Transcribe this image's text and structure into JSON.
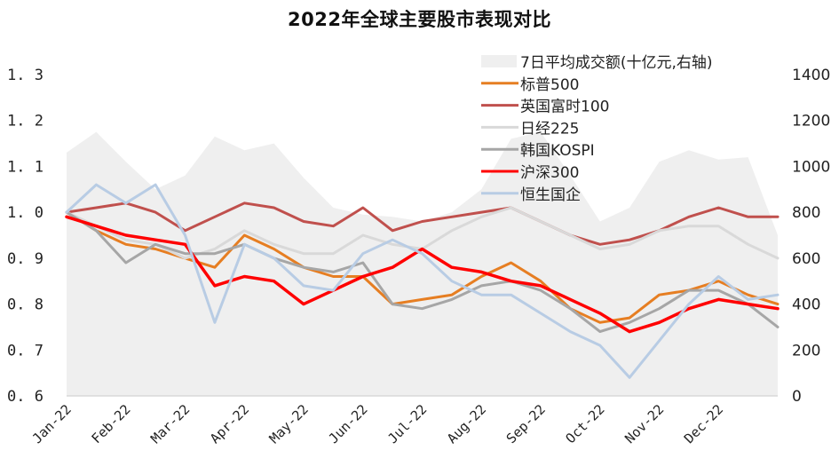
{
  "chart_data": {
    "type": "line",
    "title": "2022年全球主要股市表现对比",
    "xlabel": "",
    "ylabel": "",
    "y2label": "7日平均成交额(十亿元,右轴)",
    "ylim": [
      0.6,
      1.3
    ],
    "y2lim": [
      0,
      1400
    ],
    "grid": false,
    "legend_position": "top-right (inside plot)",
    "x_ticks": [
      "Jan-22",
      "Feb-22",
      "Mar-22",
      "Apr-22",
      "May-22",
      "Jun-22",
      "Jul-22",
      "Aug-22",
      "Sep-22",
      "Oct-22",
      "Nov-22",
      "Dec-22"
    ],
    "y_ticks": [
      "1.3",
      "1.2",
      "1.1",
      "1.0",
      "0.9",
      "0.8",
      "0.7",
      "0.6"
    ],
    "y2_ticks": [
      "1400",
      "1200",
      "1000",
      "800",
      "600",
      "400",
      "200",
      "0"
    ],
    "x": [
      "Jan-01",
      "Jan-15",
      "Feb-01",
      "Feb-15",
      "Mar-01",
      "Mar-15",
      "Apr-01",
      "Apr-15",
      "May-01",
      "May-15",
      "Jun-01",
      "Jun-15",
      "Jul-01",
      "Jul-15",
      "Aug-01",
      "Aug-15",
      "Sep-01",
      "Sep-15",
      "Oct-01",
      "Oct-15",
      "Nov-01",
      "Nov-15",
      "Dec-01",
      "Dec-15",
      "Dec-31"
    ],
    "area": {
      "name": "7日平均成交额(十亿元,右轴)",
      "axis": "right",
      "color": "#efefef",
      "values": [
        1060,
        1150,
        1020,
        900,
        960,
        1130,
        1070,
        1100,
        950,
        820,
        790,
        780,
        760,
        800,
        900,
        1120,
        1150,
        960,
        760,
        820,
        1020,
        1070,
        1030,
        1040,
        700
      ]
    },
    "series": [
      {
        "name": "标普500",
        "color": "#e67e22",
        "width": 3,
        "values": [
          1.0,
          0.96,
          0.93,
          0.92,
          0.9,
          0.88,
          0.95,
          0.92,
          0.88,
          0.86,
          0.86,
          0.8,
          0.81,
          0.82,
          0.86,
          0.89,
          0.85,
          0.79,
          0.76,
          0.77,
          0.82,
          0.83,
          0.85,
          0.82,
          0.8
        ]
      },
      {
        "name": "英国富时100",
        "color": "#c0504d",
        "width": 3,
        "values": [
          1.0,
          1.01,
          1.02,
          1.0,
          0.96,
          0.99,
          1.02,
          1.01,
          0.98,
          0.97,
          1.01,
          0.96,
          0.98,
          0.99,
          1.0,
          1.01,
          0.98,
          0.95,
          0.93,
          0.94,
          0.96,
          0.99,
          1.01,
          0.99,
          0.99
        ]
      },
      {
        "name": "日经225",
        "color": "#d9d9d9",
        "width": 3,
        "values": [
          1.0,
          0.97,
          0.94,
          0.93,
          0.9,
          0.92,
          0.96,
          0.93,
          0.91,
          0.91,
          0.95,
          0.93,
          0.92,
          0.96,
          0.99,
          1.01,
          0.98,
          0.95,
          0.92,
          0.93,
          0.96,
          0.97,
          0.97,
          0.93,
          0.9
        ]
      },
      {
        "name": "韩国KOSPI",
        "color": "#a6a6a6",
        "width": 3,
        "values": [
          1.0,
          0.96,
          0.89,
          0.93,
          0.91,
          0.91,
          0.93,
          0.9,
          0.88,
          0.87,
          0.89,
          0.8,
          0.79,
          0.81,
          0.84,
          0.85,
          0.83,
          0.79,
          0.74,
          0.76,
          0.79,
          0.83,
          0.83,
          0.8,
          0.75
        ]
      },
      {
        "name": "沪深300",
        "color": "#ff0000",
        "width": 3.5,
        "values": [
          0.99,
          0.97,
          0.95,
          0.94,
          0.93,
          0.84,
          0.86,
          0.85,
          0.8,
          0.83,
          0.86,
          0.88,
          0.92,
          0.88,
          0.87,
          0.85,
          0.84,
          0.81,
          0.78,
          0.74,
          0.76,
          0.79,
          0.81,
          0.8,
          0.79
        ]
      },
      {
        "name": "恒生国企",
        "color": "#b8cce4",
        "width": 3,
        "values": [
          1.0,
          1.06,
          1.02,
          1.06,
          0.95,
          0.76,
          0.93,
          0.9,
          0.84,
          0.83,
          0.91,
          0.94,
          0.91,
          0.85,
          0.82,
          0.82,
          0.78,
          0.74,
          0.71,
          0.64,
          0.72,
          0.8,
          0.86,
          0.81,
          0.82
        ]
      }
    ]
  },
  "legend": {
    "items": [
      {
        "label": "7日平均成交额(十亿元,右轴)",
        "type": "area",
        "color": "#efefef"
      },
      {
        "label": "标普500",
        "type": "line",
        "color": "#e67e22"
      },
      {
        "label": "英国富时100",
        "type": "line",
        "color": "#c0504d"
      },
      {
        "label": "日经225",
        "type": "line",
        "color": "#d9d9d9"
      },
      {
        "label": "韩国KOSPI",
        "type": "line",
        "color": "#a6a6a6"
      },
      {
        "label": "沪深300",
        "type": "line",
        "color": "#ff0000"
      },
      {
        "label": "恒生国企",
        "type": "line",
        "color": "#b8cce4"
      }
    ]
  }
}
